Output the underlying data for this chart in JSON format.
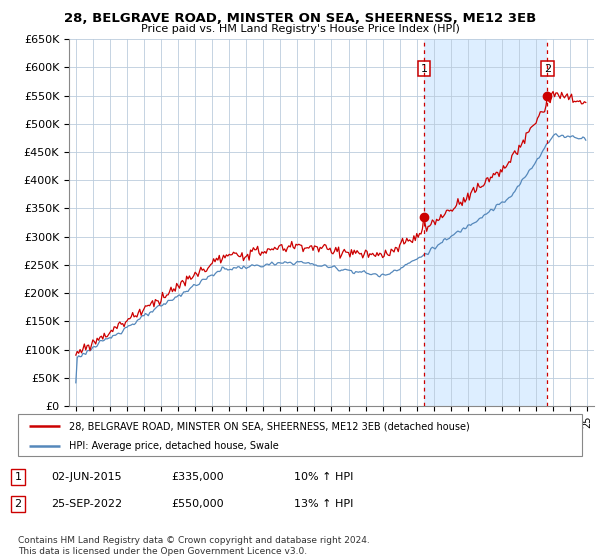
{
  "title": "28, BELGRAVE ROAD, MINSTER ON SEA, SHEERNESS, ME12 3EB",
  "subtitle": "Price paid vs. HM Land Registry's House Price Index (HPI)",
  "legend_line1": "28, BELGRAVE ROAD, MINSTER ON SEA, SHEERNESS, ME12 3EB (detached house)",
  "legend_line2": "HPI: Average price, detached house, Swale",
  "annotation1": [
    "1",
    "02-JUN-2015",
    "£335,000",
    "10% ↑ HPI"
  ],
  "annotation2": [
    "2",
    "25-SEP-2022",
    "£550,000",
    "13% ↑ HPI"
  ],
  "footer": "Contains HM Land Registry data © Crown copyright and database right 2024.\nThis data is licensed under the Open Government Licence v3.0.",
  "line_color_red": "#cc0000",
  "line_color_blue": "#5588bb",
  "shade_color": "#ddeeff",
  "marker_color": "#cc0000",
  "grid_color": "#bbccdd",
  "bg_color": "#ffffff",
  "ylim": [
    0,
    650000
  ],
  "yticks": [
    0,
    50000,
    100000,
    150000,
    200000,
    250000,
    300000,
    350000,
    400000,
    450000,
    500000,
    550000,
    600000,
    650000
  ],
  "sale1_price": 335000,
  "sale2_price": 550000
}
